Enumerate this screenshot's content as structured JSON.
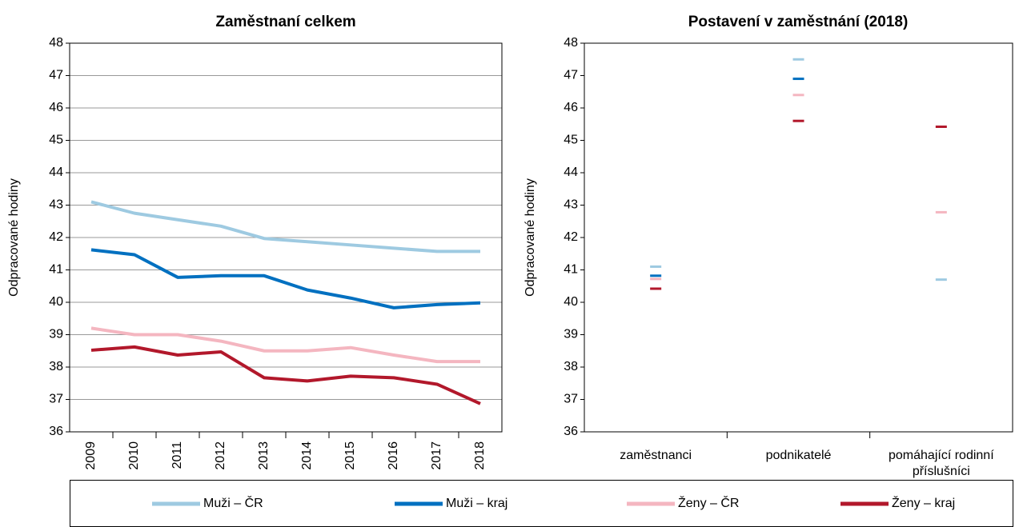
{
  "chart_data": [
    {
      "type": "line",
      "title": "Zaměstnaní celkem",
      "y_label": "Odpracované hodiny",
      "categories": [
        "2009",
        "2010",
        "2011",
        "2012",
        "2013",
        "2014",
        "2015",
        "2016",
        "2017",
        "2018"
      ],
      "series": [
        {
          "name": "Muži – ČR",
          "color": "#9ecae1",
          "values": [
            43.1,
            42.75,
            42.55,
            42.35,
            41.97,
            41.87,
            41.77,
            41.67,
            41.57,
            41.57
          ]
        },
        {
          "name": "Muži – kraj",
          "color": "#0070c0",
          "values": [
            41.62,
            41.47,
            40.77,
            40.82,
            40.82,
            40.38,
            40.13,
            39.83,
            39.93,
            39.98
          ]
        },
        {
          "name": "Ženy – ČR",
          "color": "#f4b6c0",
          "values": [
            39.2,
            39.0,
            39.0,
            38.8,
            38.5,
            38.5,
            38.6,
            38.37,
            38.17,
            38.17
          ]
        },
        {
          "name": "Ženy – kraj",
          "color": "#b2182b",
          "values": [
            38.52,
            38.62,
            38.37,
            38.47,
            37.67,
            37.57,
            37.72,
            37.67,
            37.47,
            36.87
          ]
        }
      ],
      "ylim": [
        36,
        48
      ],
      "yticks": [
        36,
        37,
        38,
        39,
        40,
        41,
        42,
        43,
        44,
        45,
        46,
        47,
        48
      ],
      "grid": true
    },
    {
      "type": "dash",
      "title": "Postavení v zaměstnání (2018)",
      "y_label": "Odpracované hodiny",
      "categories": [
        "zaměstnanci",
        "podnikatelé",
        "pomáhající rodinní příslušníci"
      ],
      "series": [
        {
          "name": "Muži – ČR",
          "color": "#9ecae1",
          "values": [
            41.1,
            47.5,
            40.7
          ]
        },
        {
          "name": "Muži – kraj",
          "color": "#0070c0",
          "values": [
            40.82,
            46.9,
            null
          ]
        },
        {
          "name": "Ženy – ČR",
          "color": "#f4b6c0",
          "values": [
            40.72,
            46.4,
            42.78
          ]
        },
        {
          "name": "Ženy – kraj",
          "color": "#b2182b",
          "values": [
            40.42,
            45.6,
            45.42
          ]
        }
      ],
      "ylim": [
        36,
        48
      ],
      "yticks": [
        36,
        37,
        38,
        39,
        40,
        41,
        42,
        43,
        44,
        45,
        46,
        47,
        48
      ],
      "grid": false
    }
  ]
}
